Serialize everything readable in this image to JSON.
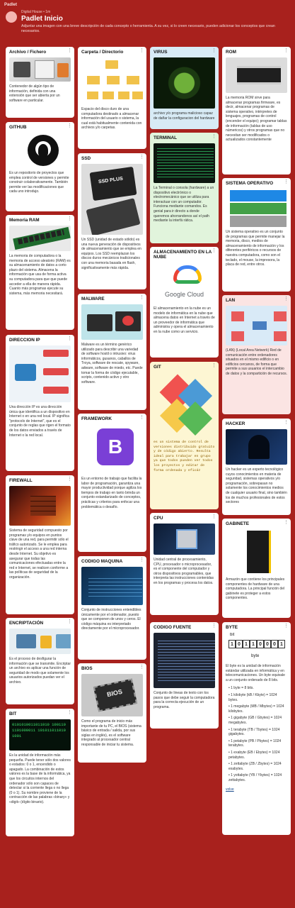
{
  "app": {
    "name": "Padlet"
  },
  "header": {
    "owner": "Digital House • 1m",
    "title": "Padlet Inicio",
    "subtitle": "Adjuntar una imagen con una breve descripción de cada concepto o herramienta. A su vez, si lo creen necesario, pueden adicionar los conceptos que crean necesarios."
  },
  "colors": {
    "background": "#a8211d",
    "card_blue": "#d8ebf6",
    "card_green": "#e1f4dc",
    "card_yellow": "#fdf6d3",
    "card_pink": "#fbe4e3"
  },
  "cards": {
    "archivo": {
      "title": "Archivo / Fichero",
      "body": "Contenedor de algún tipo de información, definida con una extensión que ser abierta por un software en particular."
    },
    "github": {
      "title": "GITHUB",
      "body": "Es un repositorio de proyectos que emplea control de versiones y permite construir colaborativamente. También permite ver las modificaciones que cada uno introdujo."
    },
    "ram": {
      "title": "Memoria RAM",
      "body": "La memoria de computadora o la memoria de acceso aleatorio (RAM) es su almacenamiento de datos a corto plazo del sistema. Almacena la información que usa de forma activa su computadora para que que puede acceder a ella de manera rápida. Cuanto más programas ejecute su sistema, más memoria necesitará."
    },
    "ip": {
      "title": "DIRECCION IP",
      "body": "Una dirección IP es una dirección única que identifica a un dispositivo en Internet o en una red local. IP significa \"protocolo de Internet\", que es el conjunto de reglas que rigen el formato de los datos enviados a través de Internet o la red local."
    },
    "firewall": {
      "title": "FIREWALL",
      "body": "Sistema de seguridad compuesto por programas y/o equipos en puntos clave de una red, para permitir sólo el tráfico autorizado. Se le emplea para restringir el acceso a una red interna desde Internet. Su objetivo es asegurar que todas las comunicaciones efectuadas entre la red e Internet, se realicen conforme a las políticas de seguridad de la organización."
    },
    "encriptacion": {
      "title": "ENCRIPTACIÓN",
      "body": "Es el proceso de desfigurar la información que se transmite. Encriptar un archivo es aplicar una función de seguridad de modo que solamente los usuarios autorizados puedan ver el archivo."
    },
    "bit": {
      "title": "BIT",
      "body": "Es la unidad de información más pequeña. Puede tener sólo dos valores o estados: 0 o 1, encendido o apagado. La combinación de estos valores es la base de la informática, ya que los circuitos internos del ordenador sólo son capaces de detectar si la corriente llega o no llega (0 o 1). Su nombre proviene de la contracción de las palabras «binary» y «digit» (dígito binario).",
      "art": "0101010011011010 1001101101000011 1010110110101001"
    },
    "carpeta": {
      "title": "Carpeta / Directorio",
      "body": "Espacio del disco duro de una computadora destinado a almacenar información del usuario o sistema, la cual está habitualmente contenida con archivos y/o carpetas."
    },
    "ssd": {
      "title": "SSD",
      "body": "Un SSD (unidad de estado sólido) es una nueva generación de dispositivos de almacenamiento que se emplea en equipos. Los SSD reemplazan los discos duros mecánicos tradicionales con una memoria basada en flash, significativamente más rápida.",
      "label": "SSD PLUS"
    },
    "malware": {
      "title": "MALWARE",
      "body": "Malware es un término genérico utilizado para describir una variedad de software hostil o intrusivo: virus informáticos, gusanos, caballos de Troya, software de rescate, spyware, adware, software de miedo, etc. Puede tomar la forma de código ejecutable, scripts, contenido activo y otro software."
    },
    "framework": {
      "title": "FRAMEWORK",
      "body": "Es un entorno de trabajo que facilita la labor de programación, garantiza una mayor productividad porque agiliza los tiempos de trabajo en tanto brinda un conjunto estandarizado de conceptos, prácticas y criterios para enfocar una problemática o desafío.",
      "logo": "B"
    },
    "codigo_maquina": {
      "title": "CODIGO MAQUINA",
      "body": "Conjunto de instrucciones entendibles únicamente por el ordenador, puesto que se componen de unos y ceros. El código máquina es interpretado directamente por el microprocesador."
    },
    "bios": {
      "title": "BIOS",
      "body": "Como el programa de inicio más importante de tu PC, el BIOS (sistema básico de entrada / salida, por sus siglas en inglés), es el software integrado al procesador central responsable de iniciar tu sistema.",
      "label": "BIOS"
    },
    "virus": {
      "title": "VIRUS",
      "body": "archivo y/o programa malicioso capaz de dañar la configuracion del hardware"
    },
    "terminal": {
      "title": "TERMINAL",
      "body": "La Terminal o consola (hardware) a un dispositivo electrónico o electromecánico que se utiliza para interactuar con un computador. Funciona mediante comandos. Es genial para ir directo a donde queremos ahorrandonos así el path mediante la interfá rática."
    },
    "nube": {
      "title": "ALMACENAMIENTO EN LA NUBE",
      "body": "El almacenamiento en la nube es un modelo de informática en la nube que almacena datos en Internet a través de un proveedor de informática que administra y opera el almacenamiento en la nube como un servicio.",
      "logo": "Google Cloud"
    },
    "git": {
      "title": "GIT",
      "body": "es un sistema de control de versiones distribuido gratuito y de código abierto. Resulta ideal para trabajar en grupo ya que todos pueden ver todos los proyectos y editar de forma ordenada y eficáz"
    },
    "cpu": {
      "title": "CPU",
      "body": "Unidad central de procesamiento, CPU, procesador o microprocesador, es el componente del computador y otros dispositivos programables, que interpreta las instrucciones contenidas en los programas y procesa los datos."
    },
    "codigo_fuente": {
      "title": "CODIGO FUENTE",
      "body": "Conjunto de lineas de texto con los pasos que debe seguir la computadora para la correcta ejecución de un programa."
    },
    "rom": {
      "title": "ROM",
      "body": "La memoria ROM sirve para almacenar programas firmware, es decir, almacenar programas de sistema operativo, intérpretes de lenguajes, programas de control (encender el equipo); programar tablas de información (tablas de uso númericos) y otros programas que no necesitan ser modificados o actualizados constantemente"
    },
    "so": {
      "title": "SISTEMA OPERATIVO",
      "body": "Un sistema operativo es un conjunto de programas que permite manejar la memoria, disco, medios de almacenamiento de información y los diferentes periféricos o recursos de nuestra computadora, como son el teclado, el mouse, la impresora, la placa de red, entre otros."
    },
    "lan": {
      "title": "LAN",
      "body": "(LAN) (Local Area Network) Red de comunicación entre ordenadores situados en el mismo edificio o en edificios cercanos, de forma que permite a sus usuarios el intercambio de datos y la compartición de recursos."
    },
    "hacker": {
      "title": "HACKER",
      "body": "Un hacker es un experto tecnológico cuyos conocimientos en materia de seguridad, sistemas operativos y/o programación, sobrepasan no solamente los conocimientos medios de cualquier usuario final, sino también los de muchos profesionales de estos sectores"
    },
    "gabinete": {
      "title": "GABINETE",
      "body": "Armazón que contiene los principales componentes de hardware de una computadora. La principal función del gabinete es proteger a estos componentes."
    },
    "byte": {
      "title": "BYTE",
      "label_bit": "bit",
      "bits": [
        "1",
        "0",
        "1",
        "1",
        "0",
        "0",
        "0",
        "1"
      ],
      "label_byte": "byte",
      "body": "El byte es la unidad de información estándar utilizada en informática y en telecomunicaciones. Un byte equivale a un conjunto ordenado de 8 bits.",
      "list": [
        "1 byte = 8 bits.",
        "1 kilobyte (kB / Kbyte) = 1024 bytes.",
        "1 megabyte (MB / Mbytes) = 1024 kilobytes.",
        "1 gigabyte (GB / Gbytes) = 1024 megabytes.",
        "1 terabyte (TB / Tbytes) = 1024 gigabytes.",
        "1 petabyte (PB / Pbytes) = 1024 terabytes.",
        "1 exabyte (EB / Ebytes) = 1024 petabytes.",
        "1 zettabyte (ZB / Zbytes) = 1024 exabytes.",
        "1 yottabyte (YB / Ybytes) = 1024 zettabytes."
      ],
      "link": "volve"
    }
  }
}
